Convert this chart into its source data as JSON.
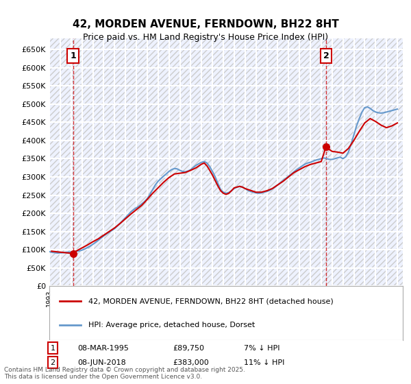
{
  "title": "42, MORDEN AVENUE, FERNDOWN, BH22 8HT",
  "subtitle": "Price paid vs. HM Land Registry's House Price Index (HPI)",
  "ylabel": "",
  "ylim": [
    0,
    680000
  ],
  "yticks": [
    0,
    50000,
    100000,
    150000,
    200000,
    250000,
    300000,
    350000,
    400000,
    450000,
    500000,
    550000,
    600000,
    650000
  ],
  "ytick_labels": [
    "£0",
    "£50K",
    "£100K",
    "£150K",
    "£200K",
    "£250K",
    "£300K",
    "£350K",
    "£400K",
    "£450K",
    "£500K",
    "£550K",
    "£600K",
    "£650K"
  ],
  "xlim_start": 1993.0,
  "xlim_end": 2025.5,
  "bg_color": "#eef2ff",
  "grid_color": "#ffffff",
  "hpi_color": "#6699cc",
  "price_color": "#cc0000",
  "marker1_x": 1995.18,
  "marker1_y": 89750,
  "marker2_x": 2018.44,
  "marker2_y": 383000,
  "annotation1_label": "1",
  "annotation2_label": "2",
  "legend_line1": "42, MORDEN AVENUE, FERNDOWN, BH22 8HT (detached house)",
  "legend_line2": "HPI: Average price, detached house, Dorset",
  "table_row1": [
    "1",
    "08-MAR-1995",
    "£89,750",
    "7% ↓ HPI"
  ],
  "table_row2": [
    "2",
    "08-JUN-2018",
    "£383,000",
    "11% ↓ HPI"
  ],
  "footer": "Contains HM Land Registry data © Crown copyright and database right 2025.\nThis data is licensed under the Open Government Licence v3.0.",
  "hpi_data_x": [
    1993.0,
    1993.25,
    1993.5,
    1993.75,
    1994.0,
    1994.25,
    1994.5,
    1994.75,
    1995.0,
    1995.25,
    1995.5,
    1995.75,
    1996.0,
    1996.25,
    1996.5,
    1996.75,
    1997.0,
    1997.25,
    1997.5,
    1997.75,
    1998.0,
    1998.25,
    1998.5,
    1998.75,
    1999.0,
    1999.25,
    1999.5,
    1999.75,
    2000.0,
    2000.25,
    2000.5,
    2000.75,
    2001.0,
    2001.25,
    2001.5,
    2001.75,
    2002.0,
    2002.25,
    2002.5,
    2002.75,
    2003.0,
    2003.25,
    2003.5,
    2003.75,
    2004.0,
    2004.25,
    2004.5,
    2004.75,
    2005.0,
    2005.25,
    2005.5,
    2005.75,
    2006.0,
    2006.25,
    2006.5,
    2006.75,
    2007.0,
    2007.25,
    2007.5,
    2007.75,
    2008.0,
    2008.25,
    2008.5,
    2008.75,
    2009.0,
    2009.25,
    2009.5,
    2009.75,
    2010.0,
    2010.25,
    2010.5,
    2010.75,
    2011.0,
    2011.25,
    2011.5,
    2011.75,
    2012.0,
    2012.25,
    2012.5,
    2012.75,
    2013.0,
    2013.25,
    2013.5,
    2013.75,
    2014.0,
    2014.25,
    2014.5,
    2014.75,
    2015.0,
    2015.25,
    2015.5,
    2015.75,
    2016.0,
    2016.25,
    2016.5,
    2016.75,
    2017.0,
    2017.25,
    2017.5,
    2017.75,
    2018.0,
    2018.25,
    2018.5,
    2018.75,
    2019.0,
    2019.25,
    2019.5,
    2019.75,
    2020.0,
    2020.25,
    2020.5,
    2020.75,
    2021.0,
    2021.25,
    2021.5,
    2021.75,
    2022.0,
    2022.25,
    2022.5,
    2022.75,
    2023.0,
    2023.25,
    2023.5,
    2023.75,
    2024.0,
    2024.25,
    2024.5,
    2024.75,
    2025.0
  ],
  "hpi_data_y": [
    95000,
    93000,
    92000,
    91000,
    91500,
    92000,
    93000,
    93500,
    94000,
    95000,
    96000,
    97000,
    99000,
    102000,
    106000,
    110000,
    115000,
    120000,
    126000,
    132000,
    138000,
    143000,
    148000,
    153000,
    158000,
    165000,
    172000,
    180000,
    188000,
    196000,
    204000,
    210000,
    215000,
    220000,
    226000,
    232000,
    240000,
    252000,
    265000,
    278000,
    288000,
    295000,
    302000,
    308000,
    315000,
    320000,
    323000,
    322000,
    318000,
    315000,
    314000,
    316000,
    320000,
    326000,
    332000,
    336000,
    340000,
    342000,
    338000,
    328000,
    315000,
    300000,
    282000,
    265000,
    258000,
    255000,
    257000,
    262000,
    268000,
    272000,
    274000,
    272000,
    268000,
    263000,
    260000,
    258000,
    256000,
    255000,
    256000,
    258000,
    260000,
    263000,
    267000,
    272000,
    278000,
    284000,
    290000,
    296000,
    302000,
    308000,
    314000,
    320000,
    325000,
    330000,
    335000,
    338000,
    340000,
    343000,
    346000,
    348000,
    350000,
    352000,
    350000,
    348000,
    348000,
    350000,
    352000,
    354000,
    350000,
    355000,
    368000,
    390000,
    415000,
    440000,
    460000,
    478000,
    490000,
    492000,
    488000,
    482000,
    478000,
    476000,
    475000,
    476000,
    478000,
    480000,
    482000,
    484000,
    486000
  ],
  "price_data_x": [
    1993.2,
    1995.18,
    1995.5,
    1996.0,
    1996.5,
    1997.0,
    1997.5,
    1998.0,
    1998.5,
    1999.0,
    1999.5,
    2000.0,
    2000.5,
    2001.0,
    2001.5,
    2002.0,
    2002.5,
    2003.0,
    2003.5,
    2004.0,
    2004.5,
    2005.0,
    2005.5,
    2006.0,
    2006.5,
    2007.0,
    2007.25,
    2007.5,
    2007.75,
    2008.0,
    2008.25,
    2008.5,
    2008.75,
    2009.0,
    2009.25,
    2009.5,
    2009.75,
    2010.0,
    2010.25,
    2010.5,
    2010.75,
    2011.0,
    2011.5,
    2012.0,
    2012.5,
    2013.0,
    2013.5,
    2014.0,
    2014.5,
    2015.0,
    2015.5,
    2016.0,
    2016.5,
    2017.0,
    2017.5,
    2018.0,
    2018.44,
    2018.75,
    2019.0,
    2019.5,
    2020.0,
    2020.5,
    2021.0,
    2021.5,
    2022.0,
    2022.5,
    2023.0,
    2023.5,
    2024.0,
    2024.5,
    2025.0
  ],
  "price_data_y": [
    96000,
    89750,
    97000,
    105000,
    113000,
    122000,
    130000,
    140000,
    150000,
    160000,
    172000,
    185000,
    198000,
    210000,
    222000,
    238000,
    255000,
    270000,
    285000,
    298000,
    308000,
    310000,
    312000,
    318000,
    325000,
    335000,
    338000,
    330000,
    318000,
    305000,
    290000,
    275000,
    262000,
    255000,
    252000,
    255000,
    262000,
    270000,
    272000,
    274000,
    272000,
    268000,
    263000,
    258000,
    258000,
    262000,
    268000,
    278000,
    288000,
    300000,
    312000,
    320000,
    328000,
    334000,
    338000,
    342000,
    383000,
    375000,
    370000,
    368000,
    365000,
    378000,
    400000,
    425000,
    448000,
    460000,
    452000,
    442000,
    435000,
    440000,
    448000
  ]
}
